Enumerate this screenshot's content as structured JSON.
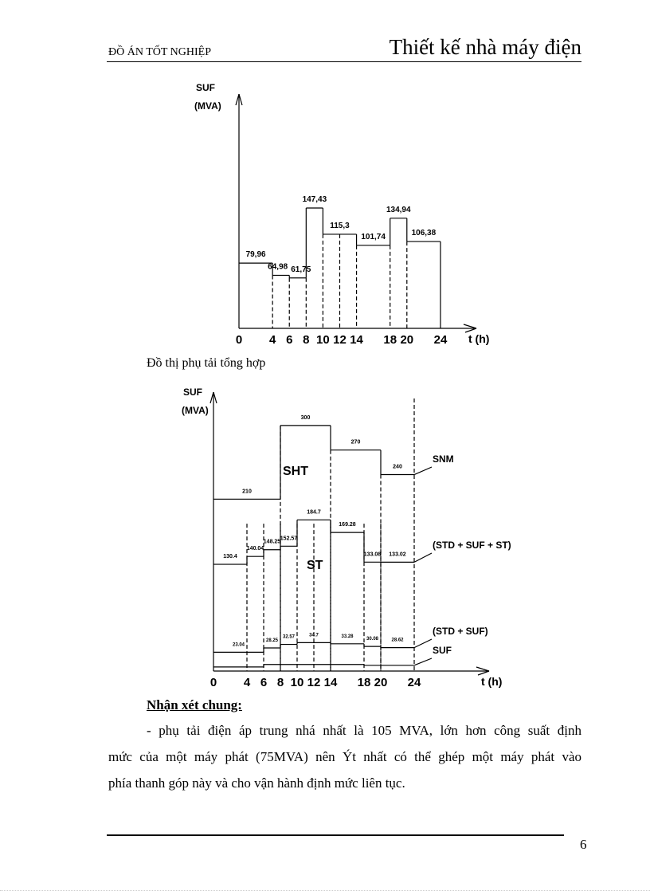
{
  "header": {
    "left": "ĐỒ ÁN TỐT NGHIỆP",
    "right": "Thiết kế nhà máy điện"
  },
  "chart_data": [
    {
      "type": "bar",
      "title": "",
      "ylabel_symbol": "SUF",
      "ylabel_unit": "(MVA)",
      "xlabel": "t (h)",
      "x_ticks": [
        0,
        4,
        6,
        8,
        10,
        12,
        14,
        18,
        20,
        24
      ],
      "intervals": [
        [
          0,
          4
        ],
        [
          4,
          6
        ],
        [
          6,
          8
        ],
        [
          8,
          10
        ],
        [
          10,
          14
        ],
        [
          14,
          18
        ],
        [
          18,
          20
        ],
        [
          20,
          24
        ]
      ],
      "values": [
        79.96,
        64.98,
        61.75,
        147.43,
        115.3,
        101.74,
        134.94,
        106.38
      ],
      "data_labels": [
        "79,96",
        "64,98",
        "61,75",
        "147,43",
        "115,3",
        "101,74",
        "134,94",
        "106,38"
      ]
    },
    {
      "type": "line",
      "title": "",
      "ylabel_symbol": "SUF",
      "ylabel_unit": "(MVA)",
      "xlabel": "t (h)",
      "x_ticks": [
        0,
        4,
        6,
        8,
        10,
        12,
        14,
        18,
        20,
        24
      ],
      "series": [
        {
          "name": "SNM",
          "intervals": [
            [
              0,
              8
            ],
            [
              8,
              14
            ],
            [
              14,
              20
            ],
            [
              20,
              24
            ]
          ],
          "values": [
            210,
            300,
            270,
            240
          ],
          "data_labels": [
            "210",
            "300",
            "270",
            "240"
          ]
        },
        {
          "name": "(STD + SUF + ST)",
          "intervals": [
            [
              0,
              4
            ],
            [
              4,
              6
            ],
            [
              6,
              8
            ],
            [
              8,
              10
            ],
            [
              10,
              14
            ],
            [
              14,
              18
            ],
            [
              18,
              20
            ],
            [
              20,
              24
            ]
          ],
          "values": [
            130.4,
            140.04,
            148.25,
            152.57,
            184.7,
            169.28,
            133.08,
            133.02
          ],
          "data_labels": [
            "130.4",
            "140.04",
            "148.25",
            "152.57",
            "184.7",
            "169.28",
            "133.08",
            "133.02"
          ]
        },
        {
          "name": "(STD + SUF)",
          "intervals": [
            [
              0,
              6
            ],
            [
              6,
              8
            ],
            [
              8,
              10
            ],
            [
              10,
              14
            ],
            [
              14,
              18
            ],
            [
              18,
              20
            ],
            [
              20,
              24
            ]
          ],
          "values": [
            23.04,
            28.25,
            32.57,
            34.7,
            33.28,
            30.08,
            28.62
          ],
          "data_labels": [
            "23.04",
            "28.25",
            "32.57",
            "34.7",
            "33.28",
            "30.08",
            "28.62"
          ]
        },
        {
          "name": "SUF",
          "intervals": [
            [
              0,
              6
            ],
            [
              6,
              18
            ],
            [
              18,
              24
            ]
          ],
          "values": [
            5,
            8,
            7
          ],
          "data_labels": []
        }
      ],
      "region_labels": [
        "SHT",
        "ST"
      ]
    }
  ],
  "caption": "Đồ thị phụ tải tổng hợp",
  "remarks": {
    "heading": "Nhận xét chung:",
    "lines": [
      "- phụ tải điện áp trung nhá nhất là 105 MVA, lớn hơn công suất định",
      "mức của một máy phát (75MVA) nên Ýt nhất có thể ghép một máy phát vào",
      "phía thanh góp này và cho vận hành định mức liên tục."
    ]
  },
  "page_number": "6"
}
